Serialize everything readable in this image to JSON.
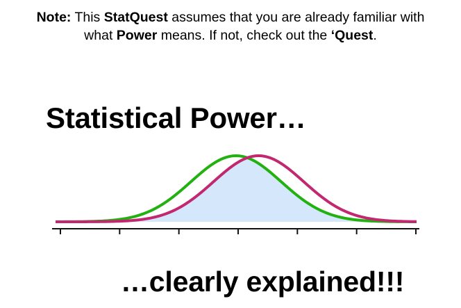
{
  "note": {
    "prefix": "Note:",
    "text1": " This ",
    "statquest": "StatQuest",
    "text2": " assumes that you are already familiar with what ",
    "power": "Power",
    "text3": " means. If not, check out the ",
    "quest": "‘Quest",
    "text4": "."
  },
  "title": "Statistical Power…",
  "subtitle": "…clearly explained!!!",
  "colors": {
    "green_curve": "#22b110",
    "magenta_curve": "#c2286f",
    "overlap_fill": "#d5e8fb",
    "axis": "#111111"
  },
  "chart_data": {
    "type": "line",
    "series": [
      {
        "distribution": "normal",
        "mean": 0,
        "sd": 1,
        "color": "green"
      },
      {
        "distribution": "normal",
        "mean": 0.5,
        "sd": 1,
        "color": "magenta"
      }
    ],
    "shaded": "overlap of the two distributions",
    "xlim": [
      -4,
      4
    ],
    "tick_count": 7
  }
}
